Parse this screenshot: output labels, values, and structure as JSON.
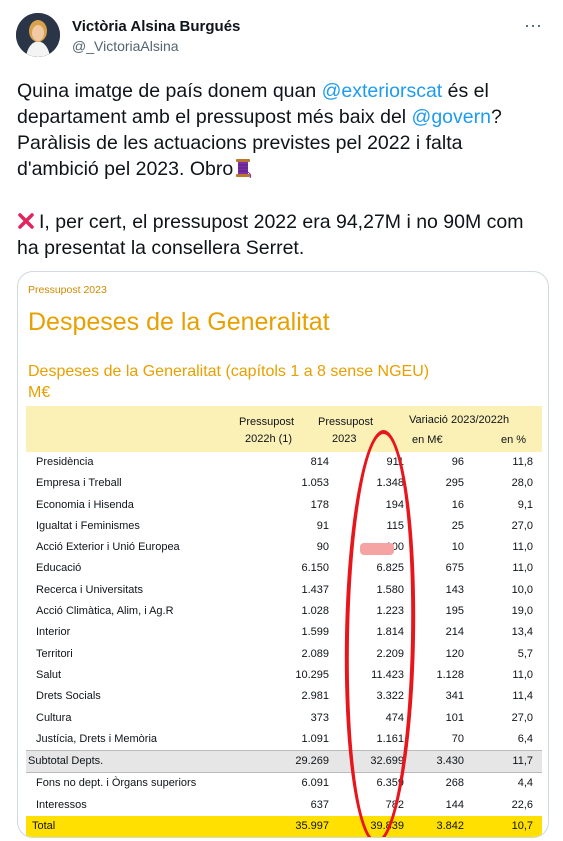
{
  "author": {
    "name": "Victòria Alsina Burgués",
    "handle": "@_VictoriaAlsina"
  },
  "more_icon": "ellipsis-icon",
  "tweet": {
    "p1_a": "Quina imatge de país donem quan ",
    "mention1": "@exteriorscat",
    "p1_b": " és el departament amb el pressupost més baix del ",
    "mention2": "@govern",
    "p1_c": "? Paràlisis de les actuacions previstes pel 2022 i falta d'ambició pel 2023. Obro",
    "emoji1": "spool-of-thread",
    "emoji2": "cross-mark",
    "p2": "I, per cert, el pressupost 2022 era 94,27M i no 90M com ha presentat la consellera Serret."
  },
  "doc": {
    "crumb": "Pressupost 2023",
    "title": "Despeses de la Generalitat",
    "subtitle": "Despeses de la Generalitat (capítols 1 a 8 sense NGEU)",
    "unit": "M€",
    "h1a": "Pressupost",
    "h1b": "2022h (1)",
    "h2a": "Pressupost",
    "h2b": "2023",
    "h3": "Variació 2023/2022h",
    "h3a": "en M€",
    "h3b": "en %"
  },
  "rows": [
    [
      "Presidència",
      "814",
      "911",
      "96",
      "11,8"
    ],
    [
      "Empresa i Treball",
      "1.053",
      "1.348",
      "295",
      "28,0"
    ],
    [
      "Economia i Hisenda",
      "178",
      "194",
      "16",
      "9,1"
    ],
    [
      "Igualtat i Feminismes",
      "91",
      "115",
      "25",
      "27,0"
    ],
    [
      "Acció Exterior i Unió Europea",
      "90",
      "100",
      "10",
      "11,0"
    ],
    [
      "Educació",
      "6.150",
      "6.825",
      "675",
      "11,0"
    ],
    [
      "Recerca i Universitats",
      "1.437",
      "1.580",
      "143",
      "10,0"
    ],
    [
      "Acció Climàtica, Alim, i Ag.R",
      "1.028",
      "1.223",
      "195",
      "19,0"
    ],
    [
      "Interior",
      "1.599",
      "1.814",
      "214",
      "13,4"
    ],
    [
      "Territori",
      "2.089",
      "2.209",
      "120",
      "5,7"
    ],
    [
      "Salut",
      "10.295",
      "11.423",
      "1.128",
      "11,0"
    ],
    [
      "Drets Socials",
      "2.981",
      "3.322",
      "341",
      "11,4"
    ],
    [
      "Cultura",
      "373",
      "474",
      "101",
      "27,0"
    ],
    [
      "Justícia, Drets i Memòria",
      "1.091",
      "1.161",
      "70",
      "6,4"
    ]
  ],
  "subtotal": [
    "Subtotal Depts.",
    "29.269",
    "32.699",
    "3.430",
    "11,7"
  ],
  "extra": [
    [
      "Fons no dept. i Òrgans superiors",
      "6.091",
      "6.359",
      "268",
      "4,4"
    ],
    [
      "Interessos",
      "637",
      "782",
      "144",
      "22,6"
    ]
  ],
  "total": [
    "Total",
    "35.997",
    "39.839",
    "3.842",
    "10,7"
  ]
}
